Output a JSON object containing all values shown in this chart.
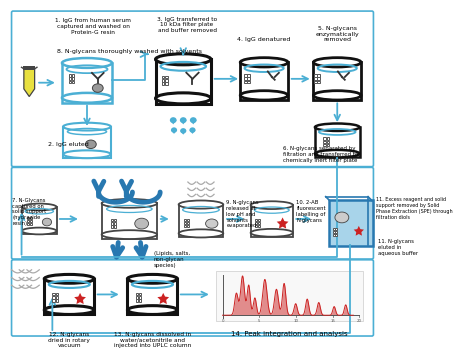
{
  "bg_color": "#ffffff",
  "step_labels": {
    "1": "1. IgG from human serum\ncaptured and washed on\nProtein-G resin",
    "2": "2. IgG eluted",
    "3": "3. IgG transferred to\n10 kDa filter plate\nand buffer removed",
    "4": "4. IgG denatured",
    "5": "5. N-glycans\nenzymatically\nremoved",
    "6": "6. N-glycans separated by\nfiltration and transferred to\nchemically inert filter plate",
    "7": "7. N-Glycans\ncaptured on\nsolid support\n(hydrazide\nresin)",
    "8": "8. N-glycans thoroughly washed with solvents",
    "9": "9. N-glycans\nreleased at\nlow pH and\nsolvents\nevaporated",
    "10": "10. 2-AB\nfluorescent\nlabelling of\nN-glycans",
    "11a": "11. Excess reagent and solid\nsupport removed by Solid\nPhase Extraction (SPE) through\nfiltration diols",
    "11b": "11. N-glycans\neluted in\naqueous buffer",
    "12": "12. N-glycans\ndried in rotary\nvacuum",
    "13": "13. N-glycans dissolved in\nwater/acetonitrile and\ninjected into UPLC column",
    "14": "14. Peak integration and analysis"
  },
  "blue": "#4bafd4",
  "dark_blue": "#2878b0",
  "light_blue": "#a8d4ea",
  "red": "#cc2222",
  "gray": "#999999",
  "dark_gray": "#444444",
  "yellow": "#e8e040",
  "black": "#111111"
}
